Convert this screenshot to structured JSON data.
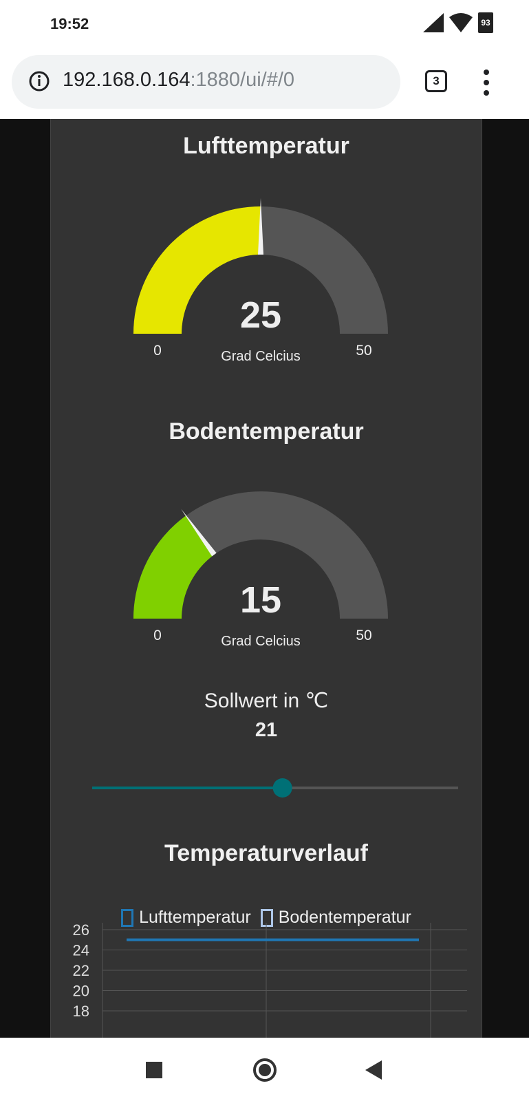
{
  "status_bar": {
    "time": "19:52",
    "battery": "93"
  },
  "browser": {
    "url_host": "192.168.0.164",
    "url_rest": ":1880/ui/#/0",
    "tab_count": "3"
  },
  "gauge_air": {
    "title": "Lufttemperatur",
    "value": 25,
    "value_text": "25",
    "unit": "Grad Celcius",
    "min": 0,
    "max": 50,
    "min_label": "0",
    "max_label": "50",
    "color": "#e6e600"
  },
  "gauge_soil": {
    "title": "Bodentemperatur",
    "value": 15,
    "value_text": "15",
    "unit": "Grad Celcius",
    "min": 0,
    "max": 50,
    "min_label": "0",
    "max_label": "50",
    "color": "#80d000"
  },
  "slider": {
    "label": "Sollwert in ℃",
    "value": 21,
    "value_text": "21",
    "fraction": 0.52,
    "color": "#007076"
  },
  "chart_section": {
    "title": "Temperaturverlauf"
  },
  "chart_data": {
    "type": "line",
    "title": "Temperaturverlauf",
    "series": [
      {
        "name": "Lufttemperatur",
        "values": [
          25,
          25
        ],
        "color": "#1f77b4"
      },
      {
        "name": "Bodentemperatur",
        "values": [],
        "color": "#aec7e8"
      }
    ],
    "yticks": [
      "26",
      "24",
      "22",
      "20",
      "18"
    ],
    "grid": true,
    "legend": "top"
  },
  "colors": {
    "track": "#555555",
    "card": "#333333",
    "background": "#111111"
  }
}
